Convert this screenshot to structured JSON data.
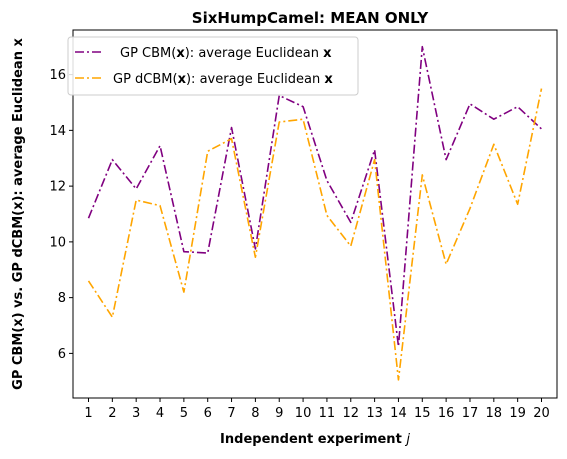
{
  "chart_data": {
    "type": "line",
    "title": "SixHumpCamel: MEAN ONLY",
    "xlabel_main": "Independent experiment ",
    "xlabel_var": "j",
    "ylabel": "GP CBM(x) vs. GP dCBM(x): average Euclidean x",
    "x": [
      1,
      2,
      3,
      4,
      5,
      6,
      7,
      8,
      9,
      10,
      11,
      12,
      13,
      14,
      15,
      16,
      17,
      18,
      19,
      20
    ],
    "x_ticks": [
      "1",
      "2",
      "3",
      "4",
      "5",
      "6",
      "7",
      "8",
      "9",
      "10",
      "11",
      "12",
      "13",
      "14",
      "15",
      "16",
      "17",
      "18",
      "19",
      "20"
    ],
    "xlim": [
      0.35,
      20.65
    ],
    "ylim": [
      4.4,
      17.6
    ],
    "y_ticks": [
      6,
      8,
      10,
      12,
      14,
      16
    ],
    "y_tick_labels": [
      "6",
      "8",
      "10",
      "12",
      "14",
      "16"
    ],
    "grid": false,
    "legend_position": "top-left",
    "series": [
      {
        "name": "GP CBM(x): average Euclidean x",
        "legend_pre": "GP CBM(",
        "legend_bold1": "x",
        "legend_mid": "): average Euclidean ",
        "legend_bold2": "x",
        "color": "#800080",
        "values": [
          10.85,
          12.95,
          11.9,
          13.45,
          9.65,
          9.6,
          14.1,
          9.75,
          15.25,
          14.85,
          12.2,
          10.7,
          13.3,
          6.25,
          17.0,
          12.95,
          14.95,
          14.4,
          14.85,
          14.05
        ]
      },
      {
        "name": "GP dCBM(x): average Euclidean x",
        "legend_pre": "GP dCBM(",
        "legend_bold1": "x",
        "legend_mid": "): average Euclidean ",
        "legend_bold2": "x",
        "color": "#FFA500",
        "values": [
          8.6,
          7.3,
          11.5,
          11.3,
          8.2,
          13.25,
          13.7,
          9.45,
          14.3,
          14.4,
          10.95,
          9.85,
          12.95,
          5.05,
          12.4,
          9.2,
          11.2,
          13.5,
          11.35,
          15.5
        ]
      }
    ]
  }
}
